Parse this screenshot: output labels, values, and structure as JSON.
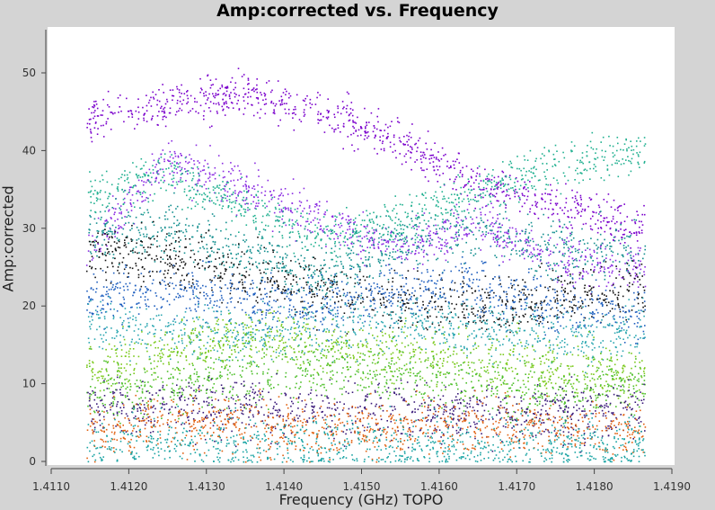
{
  "chart_data": {
    "type": "scatter",
    "title": "Amp:corrected vs. Frequency",
    "xlabel": "Frequency (GHz) TOPO",
    "ylabel": "Amp:corrected",
    "xlim": [
      1.411,
      1.419
    ],
    "ylim": [
      0,
      55
    ],
    "x_data_range": [
      1.41145,
      1.41865
    ],
    "grid": false,
    "x_ticks": [
      1.411,
      1.412,
      1.413,
      1.414,
      1.415,
      1.416,
      1.417,
      1.418,
      1.419
    ],
    "x_tick_labels": [
      "1.4110",
      "1.4120",
      "1.4130",
      "1.4140",
      "1.4150",
      "1.4160",
      "1.4170",
      "1.4180",
      "1.4190"
    ],
    "y_ticks": [
      0,
      10,
      20,
      30,
      40,
      50
    ],
    "y_tick_labels": [
      "0",
      "10",
      "20",
      "30",
      "40",
      "50"
    ],
    "series": [
      {
        "color": "#7a00cc",
        "values": [
          [
            1.41145,
            44
          ],
          [
            1.4125,
            46
          ],
          [
            1.4135,
            47.5
          ],
          [
            1.4145,
            45
          ],
          [
            1.4155,
            41
          ],
          [
            1.4165,
            36
          ],
          [
            1.4175,
            33
          ],
          [
            1.41865,
            30
          ]
        ]
      },
      {
        "color": "#8a2be2",
        "values": [
          [
            1.41145,
            27
          ],
          [
            1.4125,
            39
          ],
          [
            1.4135,
            35
          ],
          [
            1.4145,
            31
          ],
          [
            1.4155,
            27
          ],
          [
            1.4165,
            31
          ],
          [
            1.4175,
            26
          ],
          [
            1.41865,
            25
          ]
        ]
      },
      {
        "color": "#20b090",
        "values": [
          [
            1.41145,
            34
          ],
          [
            1.4125,
            37
          ],
          [
            1.4135,
            33
          ],
          [
            1.4145,
            29
          ],
          [
            1.4155,
            31
          ],
          [
            1.4165,
            35
          ],
          [
            1.4175,
            38
          ],
          [
            1.41865,
            40
          ]
        ]
      },
      {
        "color": "#138f8f",
        "values": [
          [
            1.41145,
            29
          ],
          [
            1.4125,
            30
          ],
          [
            1.4135,
            27
          ],
          [
            1.4145,
            24
          ],
          [
            1.4155,
            28
          ],
          [
            1.4165,
            30
          ],
          [
            1.4175,
            27
          ],
          [
            1.41865,
            28
          ]
        ]
      },
      {
        "color": "#111111",
        "values": [
          [
            1.41145,
            27
          ],
          [
            1.4125,
            26
          ],
          [
            1.4135,
            24
          ],
          [
            1.4145,
            22
          ],
          [
            1.4155,
            21
          ],
          [
            1.4165,
            20
          ],
          [
            1.4175,
            21
          ],
          [
            1.41865,
            22
          ]
        ]
      },
      {
        "color": "#1f5fbf",
        "values": [
          [
            1.41145,
            21
          ],
          [
            1.4125,
            22
          ],
          [
            1.4135,
            21
          ],
          [
            1.4145,
            20
          ],
          [
            1.4155,
            22
          ],
          [
            1.4165,
            23
          ],
          [
            1.4175,
            20
          ],
          [
            1.41865,
            19
          ]
        ]
      },
      {
        "color": "#2aa6b0",
        "values": [
          [
            1.41145,
            18
          ],
          [
            1.4125,
            17
          ],
          [
            1.4135,
            16
          ],
          [
            1.4145,
            17
          ],
          [
            1.4155,
            18
          ],
          [
            1.4165,
            17
          ],
          [
            1.4175,
            16
          ],
          [
            1.41865,
            17
          ]
        ]
      },
      {
        "color": "#7ac91a",
        "values": [
          [
            1.41145,
            12
          ],
          [
            1.4125,
            14
          ],
          [
            1.4135,
            16
          ],
          [
            1.4145,
            15
          ],
          [
            1.4155,
            14
          ],
          [
            1.4165,
            13
          ],
          [
            1.4175,
            12
          ],
          [
            1.41865,
            11
          ]
        ]
      },
      {
        "color": "#4cbf2a",
        "values": [
          [
            1.41145,
            9
          ],
          [
            1.4125,
            10
          ],
          [
            1.4135,
            11
          ],
          [
            1.4145,
            12
          ],
          [
            1.4155,
            11
          ],
          [
            1.4165,
            10
          ],
          [
            1.4175,
            9
          ],
          [
            1.41865,
            10
          ]
        ]
      },
      {
        "color": "#3a1a7a",
        "values": [
          [
            1.41145,
            7
          ],
          [
            1.4125,
            7.5
          ],
          [
            1.4135,
            7
          ],
          [
            1.4145,
            6.5
          ],
          [
            1.4155,
            6.5
          ],
          [
            1.4165,
            6
          ],
          [
            1.4175,
            6
          ],
          [
            1.41865,
            7
          ]
        ]
      },
      {
        "color": "#e06010",
        "values": [
          [
            1.41145,
            4
          ],
          [
            1.4125,
            5
          ],
          [
            1.4135,
            4.5
          ],
          [
            1.4145,
            4
          ],
          [
            1.4155,
            4.5
          ],
          [
            1.4165,
            5
          ],
          [
            1.4175,
            4
          ],
          [
            1.41865,
            4
          ]
        ]
      },
      {
        "color": "#19a3a3",
        "values": [
          [
            1.41145,
            2
          ],
          [
            1.4125,
            2.5
          ],
          [
            1.4135,
            2
          ],
          [
            1.4145,
            2
          ],
          [
            1.4155,
            2
          ],
          [
            1.4165,
            2
          ],
          [
            1.4175,
            2
          ],
          [
            1.41865,
            2
          ]
        ]
      }
    ]
  }
}
